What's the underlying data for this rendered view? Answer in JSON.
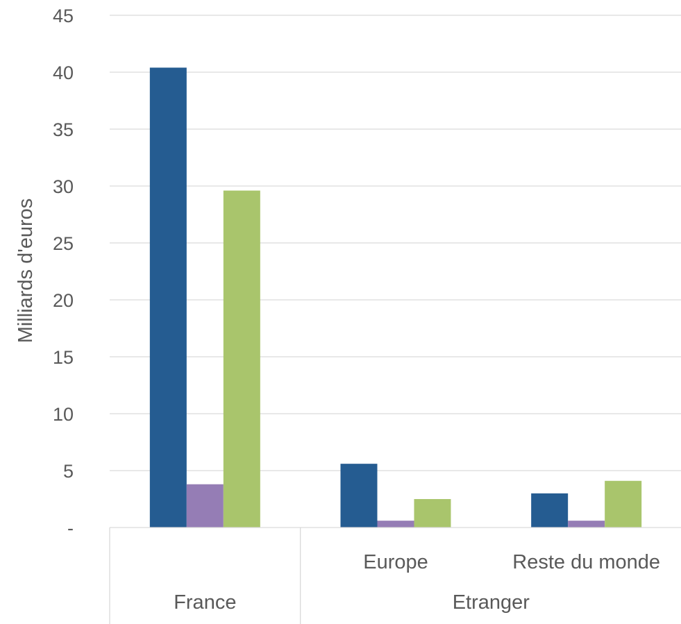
{
  "chart_data": {
    "type": "bar",
    "ylabel": "Milliards d'euros",
    "ylim": [
      0,
      45
    ],
    "y_ticks": [
      {
        "value": 0,
        "label": "-"
      },
      {
        "value": 5,
        "label": "5"
      },
      {
        "value": 10,
        "label": "10"
      },
      {
        "value": 15,
        "label": "15"
      },
      {
        "value": 20,
        "label": "20"
      },
      {
        "value": 25,
        "label": "25"
      },
      {
        "value": 30,
        "label": "30"
      },
      {
        "value": 35,
        "label": "35"
      },
      {
        "value": 40,
        "label": "40"
      },
      {
        "value": 45,
        "label": "45"
      }
    ],
    "grid": true,
    "legend": "none",
    "categories": [
      {
        "group": "France",
        "label": ""
      },
      {
        "group": "Etranger",
        "label": "Europe"
      },
      {
        "group": "Etranger",
        "label": "Reste du monde"
      }
    ],
    "groups": [
      "France",
      "Etranger"
    ],
    "series": [
      {
        "color": "#255c91",
        "values": [
          40.4,
          5.6,
          3.0
        ]
      },
      {
        "color": "#957db5",
        "values": [
          3.8,
          0.6,
          0.6
        ]
      },
      {
        "color": "#a9c56c",
        "values": [
          29.6,
          2.5,
          4.1
        ]
      }
    ]
  }
}
